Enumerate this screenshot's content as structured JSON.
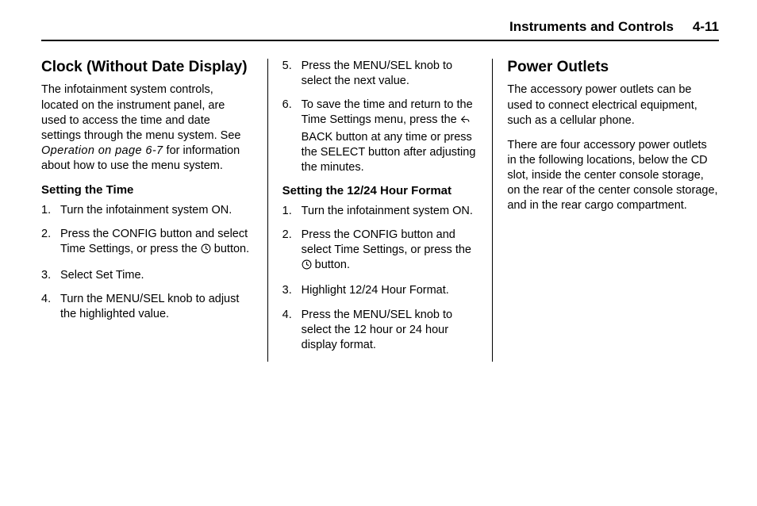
{
  "header": {
    "chapter_title": "Instruments and Controls",
    "page_number": "4-11"
  },
  "col1": {
    "heading": "Clock (Without Date Display)",
    "intro_before_ref": "The infotainment system controls, located on the instrument panel, are used to access the time and date settings through the menu system. See ",
    "intro_ref": "Operation on page 6-7",
    "intro_after_ref": " for information about how to use the menu system.",
    "subhead": "Setting the Time",
    "steps": [
      "Turn the infotainment system ON.",
      "Press the CONFIG button and select Time Settings, or press the __CLOCK__ button.",
      "Select Set Time.",
      "Turn the MENU/SEL knob to adjust the highlighted value."
    ]
  },
  "col2": {
    "steps_cont": [
      "Press the MENU/SEL knob to select the next value.",
      "To save the time and return to the Time Settings menu, press the __BACK__ BACK button at any time or press the SELECT button after adjusting the minutes."
    ],
    "steps_cont_start": 5,
    "subhead": "Setting the 12/24 Hour Format",
    "steps2": [
      "Turn the infotainment system ON.",
      "Press the CONFIG button and select Time Settings, or press the __CLOCK__ button.",
      "Highlight 12/24 Hour Format.",
      "Press the MENU/SEL knob to select the 12 hour or 24 hour display format."
    ]
  },
  "col3": {
    "heading": "Power Outlets",
    "p1": "The accessory power outlets can be used to connect electrical equipment, such as a cellular phone.",
    "p2": "There are four accessory power outlets in the following locations, below the CD slot, inside the center console storage, on the rear of the center console storage, and in the rear cargo compartment."
  }
}
